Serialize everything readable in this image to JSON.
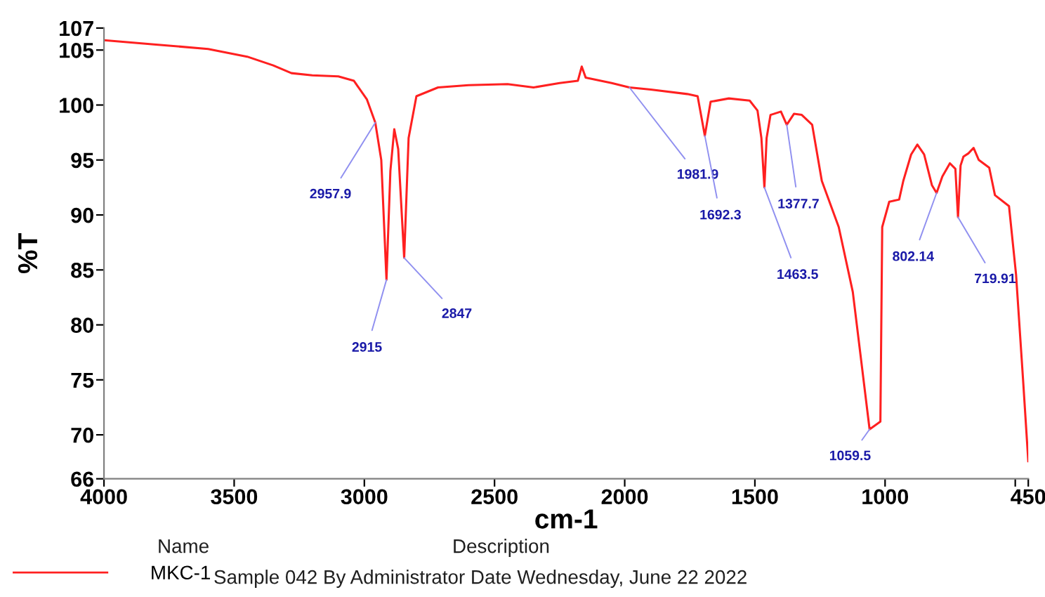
{
  "chart_data": {
    "type": "line",
    "xlabel": "cm-1",
    "ylabel": "%T",
    "xlim": [
      4000,
      450
    ],
    "ylim": [
      66,
      107
    ],
    "xticks": [
      4000,
      3500,
      3000,
      2500,
      2000,
      1500,
      1000,
      {
        "value": 500,
        "label": null
      },
      450
    ],
    "yticks": [
      66,
      70,
      75,
      80,
      85,
      90,
      95,
      100,
      105,
      107
    ],
    "grid": false,
    "legend": "bottom",
    "marker": "none",
    "line_style": "solid",
    "series": [
      {
        "name": "MKC-1",
        "color": "#ff2020",
        "x": [
          4000,
          3800,
          3600,
          3450,
          3350,
          3280,
          3200,
          3100,
          3040,
          2990,
          2958,
          2935,
          2915,
          2900,
          2885,
          2870,
          2847,
          2830,
          2800,
          2717,
          2600,
          2450,
          2350,
          2250,
          2180,
          2165,
          2150,
          2050,
          1981.9,
          1900,
          1760,
          1720,
          1692.3,
          1670,
          1600,
          1520,
          1490,
          1475,
          1463.5,
          1455,
          1440,
          1400,
          1377.7,
          1350,
          1320,
          1280,
          1243,
          1178,
          1124,
          1059.5,
          1018,
          1011,
          984,
          946,
          930,
          900,
          876,
          850,
          820,
          802.14,
          780,
          751,
          730,
          719.91,
          710,
          699,
          680,
          660,
          640,
          600,
          578,
          524,
          497,
          470,
          450
        ],
        "values": [
          105.9,
          105.5,
          105.1,
          104.4,
          103.6,
          102.9,
          102.7,
          102.6,
          102.2,
          100.5,
          98.4,
          95,
          84.1,
          94,
          97.8,
          96,
          86.1,
          97,
          100.8,
          101.6,
          101.8,
          101.9,
          101.6,
          102.0,
          102.2,
          103.5,
          102.5,
          102.0,
          101.6,
          101.4,
          101.0,
          100.8,
          97.2,
          100.3,
          100.6,
          100.4,
          99.5,
          97,
          92.5,
          97,
          99.1,
          99.4,
          98.2,
          99.2,
          99.1,
          98.2,
          93.1,
          88.9,
          83.0,
          70.5,
          71.2,
          88.9,
          91.2,
          91.4,
          93.1,
          95.5,
          96.4,
          95.5,
          92.7,
          92.0,
          93.5,
          94.7,
          94.2,
          89.8,
          94.5,
          95.3,
          95.6,
          96.1,
          95.0,
          94.3,
          91.8,
          90.8,
          84.6,
          75,
          67.6
        ]
      }
    ],
    "annotations": [
      {
        "text": "2957.9",
        "x": 2957.9,
        "y": 98.4
      },
      {
        "text": "2915",
        "x": 2915,
        "y": 84.1
      },
      {
        "text": "2847",
        "x": 2847,
        "y": 86.1
      },
      {
        "text": "1981.9",
        "x": 1981.9,
        "y": 101.6
      },
      {
        "text": "1692.3",
        "x": 1692.3,
        "y": 97.2
      },
      {
        "text": "1463.5",
        "x": 1463.5,
        "y": 92.5
      },
      {
        "text": "1377.7",
        "x": 1377.7,
        "y": 98.2
      },
      {
        "text": "1059.5",
        "x": 1059.5,
        "y": 70.5
      },
      {
        "text": "802.14",
        "x": 802.14,
        "y": 92.0
      },
      {
        "text": "719.91",
        "x": 719.91,
        "y": 89.8
      },
      "Name",
      "Description",
      "Sample 042 By Administrator Date Wednesday, June 22 2022"
    ]
  }
}
